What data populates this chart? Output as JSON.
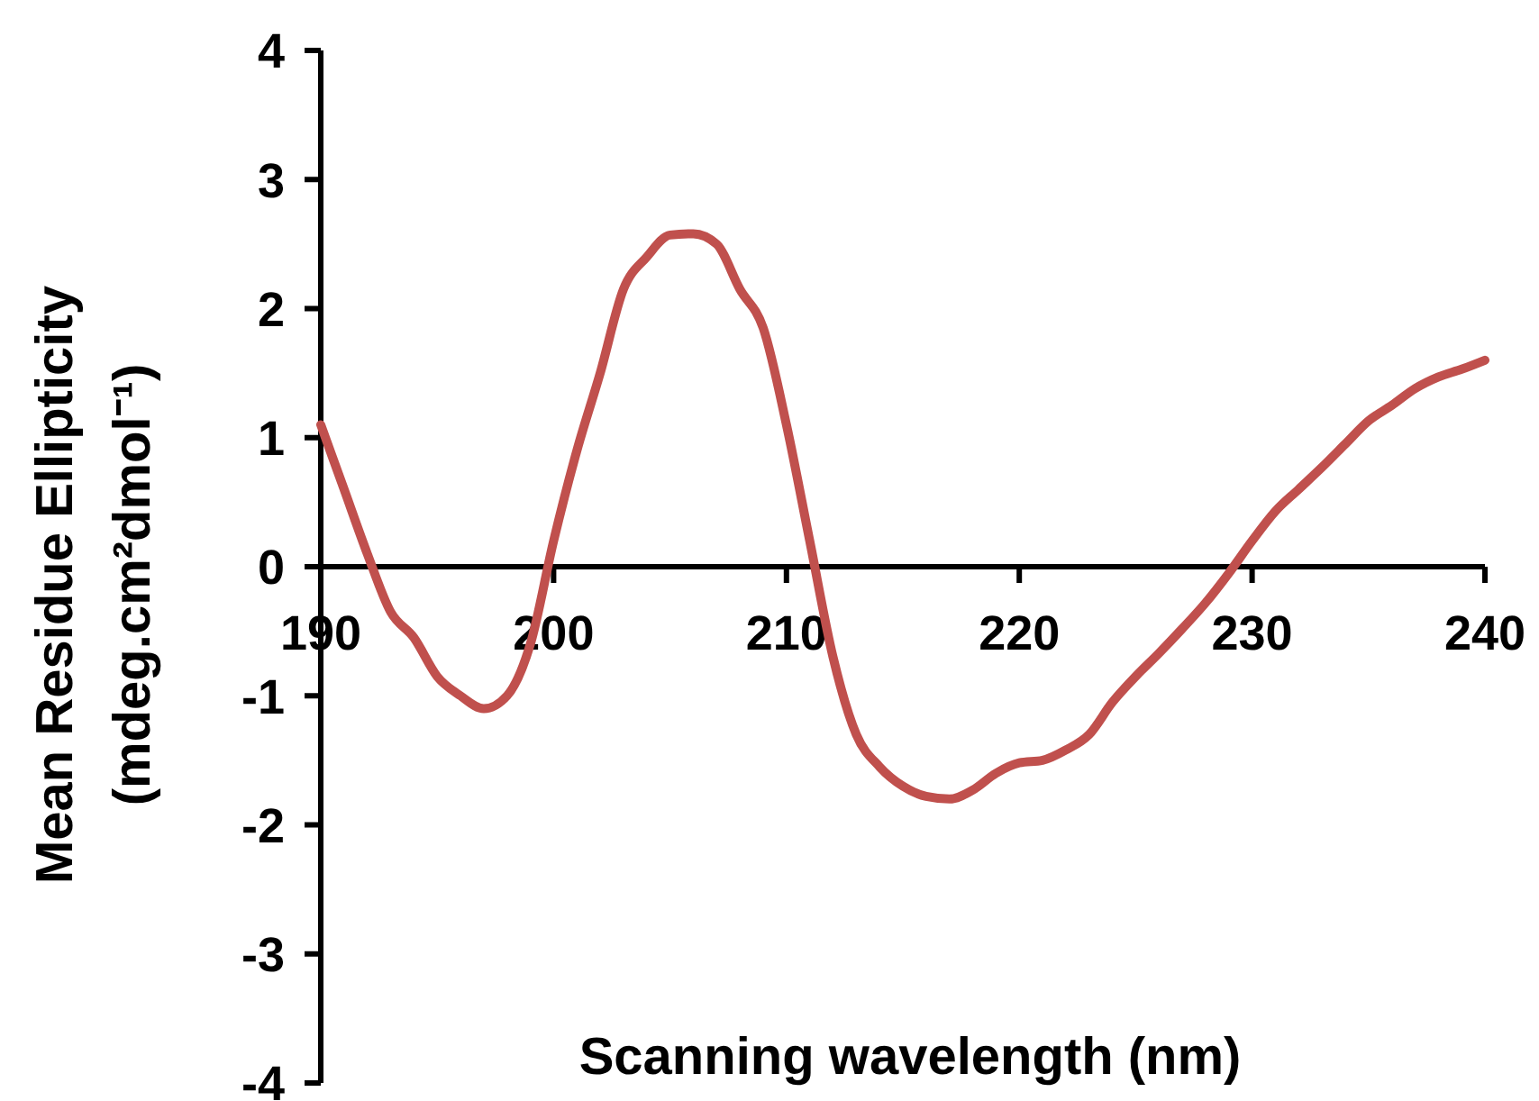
{
  "chart_data": {
    "type": "line",
    "xlabel": "Scanning wavelength (nm)",
    "ylabel": "Mean Residue Ellipticity\n(mdeg.cm²dmol⁻¹)",
    "x": [
      190,
      191,
      192,
      193,
      194,
      195,
      196,
      197,
      198,
      199,
      200,
      201,
      202,
      203,
      204,
      205,
      206,
      207,
      208,
      209,
      210,
      211,
      212,
      213,
      214,
      215,
      216,
      217,
      218,
      219,
      220,
      221,
      222,
      223,
      224,
      225,
      226,
      227,
      228,
      229,
      230,
      231,
      232,
      233,
      234,
      235,
      236,
      237,
      238,
      239,
      240
    ],
    "series": [
      {
        "color": "#c0504d",
        "values": [
          1.1,
          0.6,
          0.1,
          -0.35,
          -0.55,
          -0.85,
          -1.0,
          -1.1,
          -1.0,
          -0.6,
          0.2,
          0.9,
          1.5,
          2.15,
          2.4,
          2.57,
          2.58,
          2.5,
          2.15,
          1.85,
          1.1,
          0.2,
          -0.7,
          -1.3,
          -1.55,
          -1.7,
          -1.78,
          -1.8,
          -1.73,
          -1.6,
          -1.52,
          -1.5,
          -1.42,
          -1.3,
          -1.05,
          -0.85,
          -0.67,
          -0.48,
          -0.28,
          -0.05,
          0.2,
          0.43,
          0.6,
          0.77,
          0.95,
          1.13,
          1.25,
          1.38,
          1.47,
          1.53,
          1.6
        ]
      }
    ],
    "xlim": [
      190,
      240
    ],
    "xticks": [
      190,
      200,
      210,
      220,
      230,
      240
    ],
    "ylim": [
      -4,
      4
    ],
    "yticks": [
      -4,
      -3,
      -2,
      -1,
      0,
      1,
      2,
      3,
      4
    ],
    "grid": false,
    "marker": "none",
    "line_style": "solid"
  }
}
